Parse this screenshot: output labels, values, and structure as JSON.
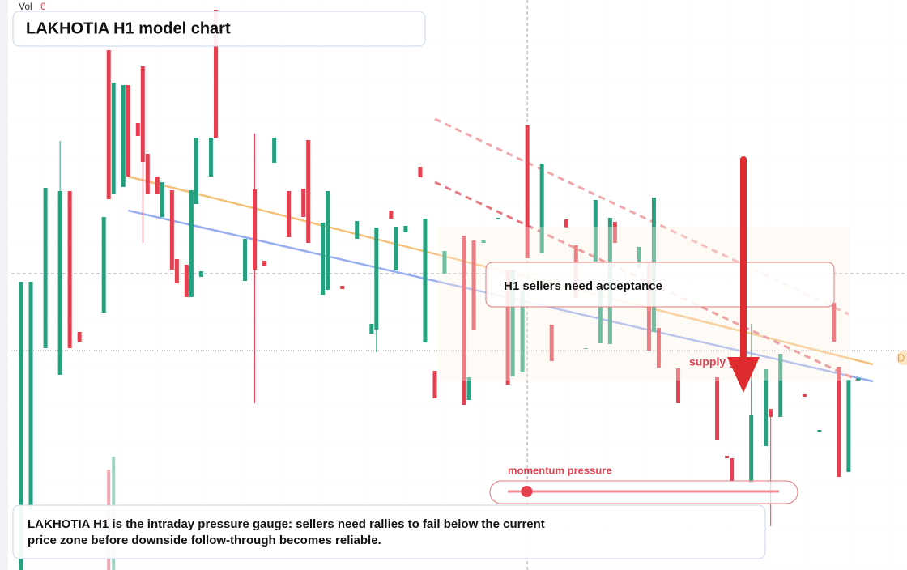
{
  "chart_data": {
    "type": "candlestick",
    "title": "LAKHOTIA H1 model chart",
    "volume_label": "Vol",
    "volume_value": "6",
    "x": [
      2,
      4,
      7,
      10,
      12,
      14,
      19,
      20,
      21,
      23,
      24,
      26,
      27,
      28,
      30,
      31,
      33,
      34,
      36,
      37,
      38,
      39,
      41,
      42,
      48,
      50,
      52,
      54,
      57,
      60,
      61,
      64,
      65,
      68,
      71,
      74,
      75,
      78,
      79,
      81,
      84,
      85,
      87,
      89,
      93,
      94,
      95,
      97,
      100,
      102,
      103,
      105,
      106,
      109,
      111,
      114,
      116,
      118,
      120,
      121,
      123,
      124,
      129,
      131,
      132,
      133,
      137,
      145,
      147,
      148,
      152,
      155,
      156,
      158,
      163,
      166,
      169,
      170,
      172,
      174
    ],
    "open": [
      0,
      74,
      274,
      241,
      468,
      294,
      318,
      642,
      464,
      473,
      599,
      552,
      622,
      514,
      486,
      436,
      469,
      384,
      377,
      337,
      452,
      362,
      486,
      692,
      357,
      470,
      382,
      503,
      468,
      471,
      531,
      340,
      346,
      351,
      409,
      292,
      297,
      444,
      370,
      417,
      498,
      281,
      246,
      366,
      413,
      210,
      407,
      404,
      433,
      371,
      239,
      244,
      549,
      391,
      303,
      433,
      401,
      273,
      381,
      280,
      279,
      430,
      373,
      379,
      294,
      299,
      249,
      238,
      141,
      138,
      108,
      153,
      199,
      189,
      217,
      171,
      330,
      251,
      121,
      234
    ],
    "high": [
      356,
      356,
      472,
      530,
      468,
      294,
      436,
      642,
      602,
      599,
      599,
      552,
      622,
      514,
      486,
      479,
      469,
      384,
      377,
      469,
      534,
      369,
      534,
      692,
      409,
      539,
      382,
      534,
      468,
      471,
      531,
      429,
      468,
      351,
      431,
      304,
      423,
      444,
      424,
      425,
      498,
      434,
      246,
      394,
      413,
      238,
      407,
      408,
      435,
      371,
      371,
      344,
      549,
      502,
      303,
      433,
      401,
      274,
      457,
      350,
      435,
      430,
      399,
      379,
      460,
      299,
      249,
      238,
      141,
      138,
      304,
      248,
      199,
      267,
      217,
      173,
      330,
      251,
      235,
      237
    ],
    "low": [
      0,
      74,
      274,
      241,
      274,
      282,
      318,
      458,
      464,
      473,
      486,
      536,
      404,
      464,
      464,
      436,
      371,
      354,
      337,
      337,
      452,
      362,
      486,
      534,
      357,
      206,
      376,
      503,
      411,
      436,
      404,
      340,
      346,
      347,
      409,
      292,
      269,
      434,
      370,
      417,
      485,
      281,
      212,
      366,
      204,
      210,
      296,
      404,
      433,
      229,
      239,
      244,
      385,
      391,
      258,
      423,
      336,
      273,
      381,
      280,
      279,
      404,
      373,
      271,
      294,
      250,
      206,
      160,
      138,
      110,
      108,
      153,
      54,
      189,
      214,
      171,
      282,
      115,
      121,
      234
    ],
    "close": [
      356,
      356,
      472,
      468,
      274,
      282,
      436,
      458,
      602,
      599,
      486,
      536,
      504,
      464,
      464,
      479,
      371,
      354,
      337,
      469,
      534,
      369,
      534,
      534,
      409,
      371,
      376,
      534,
      411,
      436,
      404,
      429,
      468,
      347,
      431,
      304,
      423,
      434,
      424,
      425,
      485,
      434,
      212,
      394,
      204,
      238,
      296,
      408,
      435,
      229,
      371,
      344,
      385,
      502,
      258,
      423,
      336,
      274,
      457,
      350,
      435,
      404,
      399,
      271,
      460,
      250,
      206,
      160,
      138,
      110,
      192,
      248,
      189,
      267,
      214,
      173,
      282,
      115,
      235,
      237
    ],
    "up_color": "#26a17f",
    "down_color": "#e5404f",
    "xlim": [
      0,
      184
    ],
    "ylim": [
      0,
      704
    ],
    "volume": {
      "x": [
        20,
        21
      ],
      "values": [
        124,
        140
      ],
      "vlim": [
        0,
        704
      ]
    },
    "trendlines": [
      {
        "x": [
          24,
          177
        ],
        "y": [
          486,
          254
        ],
        "color": "#f5c07a",
        "dash": false
      },
      {
        "x": [
          24,
          177
        ],
        "y": [
          444,
          233
        ],
        "color": "#97aef0",
        "dash": false
      },
      {
        "x": [
          87,
          174
        ],
        "y": [
          479,
          234
        ],
        "color": "#e5797f",
        "dash": true
      },
      {
        "x": [
          87,
          172
        ],
        "y": [
          557,
          316
        ],
        "color": "#f0a8aa",
        "dash": true
      }
    ],
    "levels": [
      366,
      271
    ],
    "cursor_x": 106,
    "annotations": {
      "callout": "H1 sellers need acceptance",
      "supply": "supply gate",
      "gauge_label": "momentum pressure",
      "gauge": {
        "value": 7,
        "lim": [
          0,
          100
        ]
      },
      "price_tag": "D",
      "note": [
        "LAKHOTIA H1 is the intraday pressure gauge: sellers need rallies to fail below the current",
        "price zone before downside follow-through becomes reliable."
      ]
    }
  }
}
